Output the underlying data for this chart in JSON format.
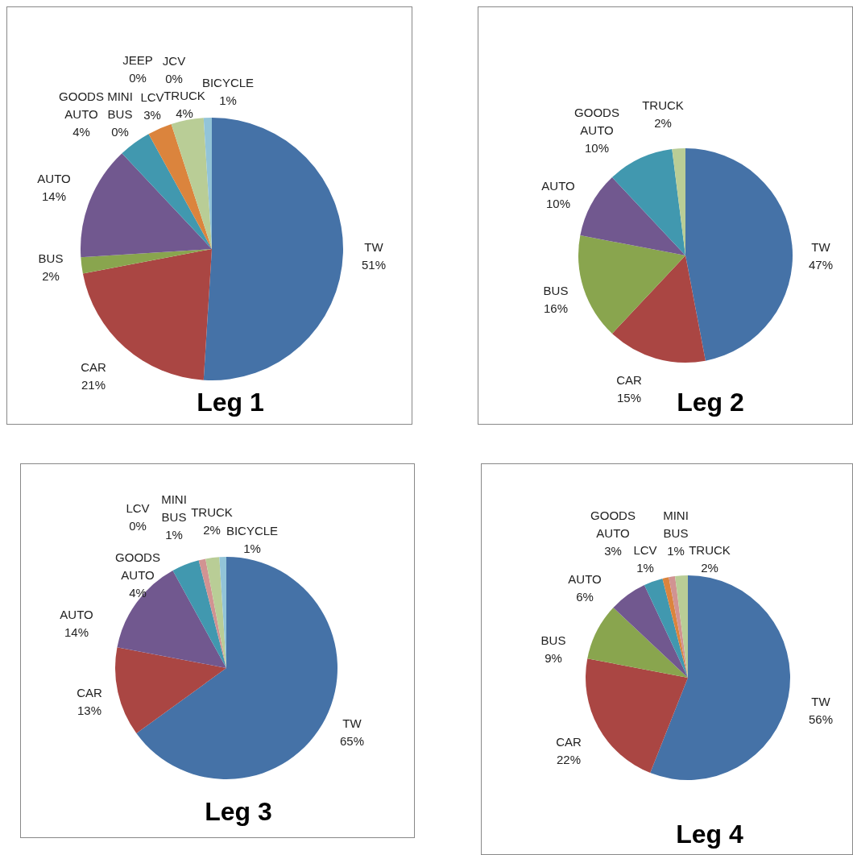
{
  "chart_data": [
    {
      "type": "pie",
      "title": "Leg 1",
      "categories": [
        "TW",
        "CAR",
        "BUS",
        "AUTO",
        "GOODS AUTO",
        "MINI BUS",
        "JEEP",
        "LCV",
        "JCV",
        "TRUCK",
        "BICYCLE"
      ],
      "values": [
        51,
        21,
        2,
        14,
        4,
        0,
        0,
        3,
        0,
        4,
        1
      ],
      "value_labels": [
        "51%",
        "21%",
        "2%",
        "14%",
        "4%",
        "0%",
        "0%",
        "3%",
        "0%",
        "4%",
        "1%"
      ],
      "colors": [
        "#4572a7",
        "#aa4643",
        "#89a54e",
        "#71588f",
        "#4198af",
        "#d19392",
        "#93a9cf",
        "#db843d",
        "#a99bbd",
        "#b9cd96",
        "#92c4d8"
      ]
    },
    {
      "type": "pie",
      "title": "Leg 2",
      "categories": [
        "TW",
        "CAR",
        "BUS",
        "AUTO",
        "GOODS AUTO",
        "TRUCK"
      ],
      "values": [
        47,
        15,
        16,
        10,
        10,
        2
      ],
      "value_labels": [
        "47%",
        "15%",
        "16%",
        "10%",
        "10%",
        "2%"
      ],
      "colors": [
        "#4572a7",
        "#aa4643",
        "#89a54e",
        "#71588f",
        "#4198af",
        "#b9cd96"
      ]
    },
    {
      "type": "pie",
      "title": "Leg 3",
      "categories": [
        "TW",
        "CAR",
        "AUTO",
        "GOODS AUTO",
        "LCV",
        "MINI BUS",
        "TRUCK",
        "BICYCLE"
      ],
      "values": [
        65,
        13,
        14,
        4,
        0,
        1,
        2,
        1
      ],
      "value_labels": [
        "65%",
        "13%",
        "14%",
        "4%",
        "0%",
        "1%",
        "2%",
        "1%"
      ],
      "colors": [
        "#4572a7",
        "#aa4643",
        "#71588f",
        "#4198af",
        "#db843d",
        "#d19392",
        "#b9cd96",
        "#92c4d8"
      ]
    },
    {
      "type": "pie",
      "title": "Leg 4",
      "categories": [
        "TW",
        "CAR",
        "BUS",
        "AUTO",
        "GOODS AUTO",
        "LCV",
        "MINI BUS",
        "TRUCK"
      ],
      "values": [
        56,
        22,
        9,
        6,
        3,
        1,
        1,
        2
      ],
      "value_labels": [
        "56%",
        "22%",
        "9%",
        "6%",
        "3%",
        "1%",
        "1%",
        "2%"
      ],
      "colors": [
        "#4572a7",
        "#aa4643",
        "#89a54e",
        "#71588f",
        "#4198af",
        "#db843d",
        "#d19392",
        "#b9cd96"
      ]
    }
  ]
}
